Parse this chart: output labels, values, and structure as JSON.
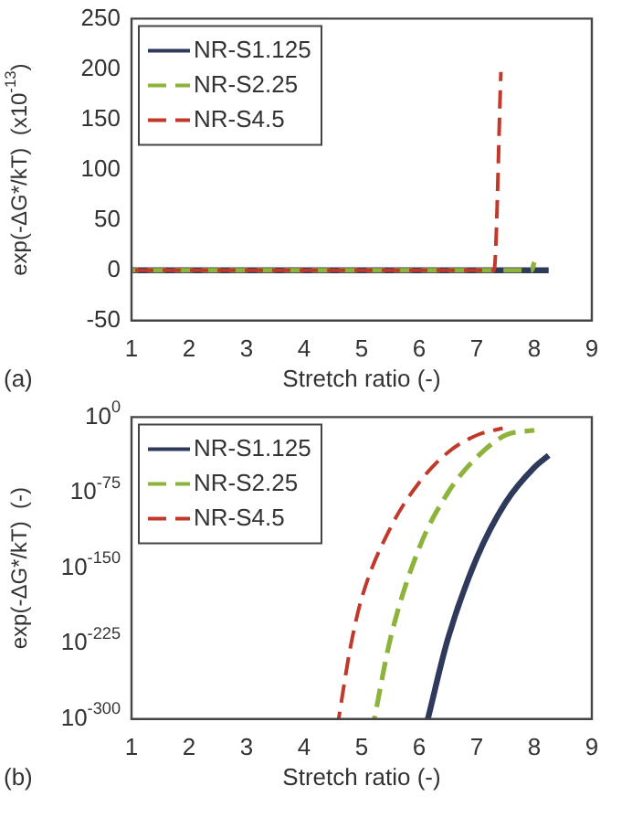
{
  "chart_data": [
    {
      "type": "line",
      "xlabel": "Stretch ratio (-)",
      "ylabel": "exp(-ΔG*/kT)  (x10$^{-13}$)",
      "annotations": [
        "(a)"
      ],
      "xlim": [
        1,
        9
      ],
      "xticks": [
        1,
        2,
        3,
        4,
        5,
        6,
        7,
        8,
        9
      ],
      "ylim": [
        -50,
        250
      ],
      "yticks": [
        -50,
        0,
        50,
        100,
        150,
        200,
        250
      ],
      "grid": false,
      "legend": "top left",
      "marker": "none",
      "series": [
        {
          "name": "NR-S1.125",
          "color": "#2e3a5c",
          "line_style": "solid",
          "x": [
            1,
            8.25
          ],
          "values": [
            0,
            0
          ]
        },
        {
          "name": "NR-S2.25",
          "color": "#8db33a",
          "line_style": "dashed",
          "x": [
            1,
            7.95,
            8.0
          ],
          "values": [
            0,
            0,
            8
          ]
        },
        {
          "name": "NR-S4.5",
          "color": "#c0392b",
          "line_style": "dashed",
          "x": [
            1,
            7.3,
            7.42
          ],
          "values": [
            0,
            0,
            197
          ]
        }
      ]
    },
    {
      "type": "line",
      "xlabel": "Stretch ratio (-)",
      "ylabel": "exp(-ΔG*/kT)  (-)",
      "annotations": [
        "(b)"
      ],
      "log": "y",
      "xlim": [
        1,
        9
      ],
      "xticks": [
        1,
        2,
        3,
        4,
        5,
        6,
        7,
        8,
        9
      ],
      "ylim": [
        1e-300,
        1
      ],
      "yticks": [
        {
          "value": 1,
          "label": "10$^{0}$"
        },
        {
          "value": 1e-75,
          "label": "10$^{-75}$"
        },
        {
          "value": 1e-150,
          "label": "10$^{-150}$"
        },
        {
          "value": 1e-225,
          "label": "10$^{-225}$"
        },
        {
          "value": 1e-300,
          "label": "10$^{-300}$"
        }
      ],
      "grid": false,
      "legend": "top left",
      "marker": "none",
      "series": [
        {
          "name": "NR-S1.125",
          "color": "#2e3a5c",
          "line_style": "solid",
          "x": [
            6.15,
            6.5,
            7.0,
            7.5,
            8.0,
            8.25
          ],
          "values": [
            1e-300,
            1e-220,
            1e-140,
            1e-85,
            1e-50,
            1e-38
          ]
        },
        {
          "name": "NR-S2.25",
          "color": "#8db33a",
          "line_style": "dashed",
          "x": [
            5.22,
            5.5,
            6.0,
            6.5,
            7.0,
            7.5,
            8.0
          ],
          "values": [
            1e-300,
            1e-220,
            1e-130,
            1e-75,
            1e-40,
            1e-18,
            1e-13
          ]
        },
        {
          "name": "NR-S4.5",
          "color": "#c0392b",
          "line_style": "dashed",
          "x": [
            4.6,
            4.8,
            5.0,
            5.5,
            6.0,
            6.5,
            7.0,
            7.45
          ],
          "values": [
            1e-300,
            1e-230,
            1e-180,
            1e-110,
            1e-65,
            1e-35,
            1e-18,
            1e-11
          ]
        }
      ]
    }
  ]
}
